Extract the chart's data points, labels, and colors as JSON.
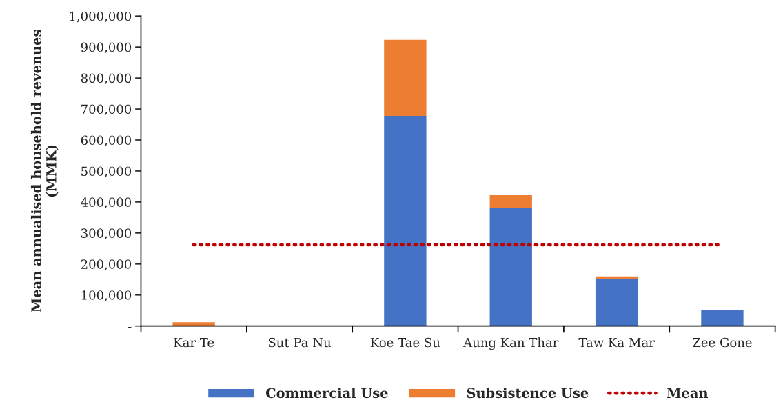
{
  "chart_data": {
    "type": "bar",
    "stacked": true,
    "ylabel": "Mean annualised household revenues (MMK)",
    "categories": [
      "Kar Te",
      "Sut Pa Nu",
      "Koe Tae Su",
      "Aung Kan Thar",
      "Taw Ka Mar",
      "Zee Gone"
    ],
    "series": [
      {
        "name": "Commercial Use",
        "color": "#4472c4",
        "values": [
          0,
          0,
          678000,
          381000,
          153000,
          52000
        ]
      },
      {
        "name": "Subsistence Use",
        "color": "#ed7d31",
        "values": [
          12000,
          0,
          245000,
          41000,
          7000,
          0
        ]
      },
      {
        "name": "Mean",
        "type": "line",
        "line_style": "dotted",
        "color": "#c00000",
        "values": [
          262000,
          262000,
          262000,
          262000,
          262000,
          262000
        ]
      }
    ],
    "ylim": [
      0,
      1000000
    ],
    "yticks": [
      {
        "value": 0,
        "label": "-"
      },
      {
        "value": 100000,
        "label": "100,000"
      },
      {
        "value": 200000,
        "label": "200,000"
      },
      {
        "value": 300000,
        "label": "300,000"
      },
      {
        "value": 400000,
        "label": "400,000"
      },
      {
        "value": 500000,
        "label": "500,000"
      },
      {
        "value": 600000,
        "label": "600,000"
      },
      {
        "value": 700000,
        "label": "700,000"
      },
      {
        "value": 800000,
        "label": "800,000"
      },
      {
        "value": 900000,
        "label": "900,000"
      },
      {
        "value": 1000000,
        "label": "1,000,000"
      }
    ],
    "grid": false,
    "legend": "bottom"
  }
}
